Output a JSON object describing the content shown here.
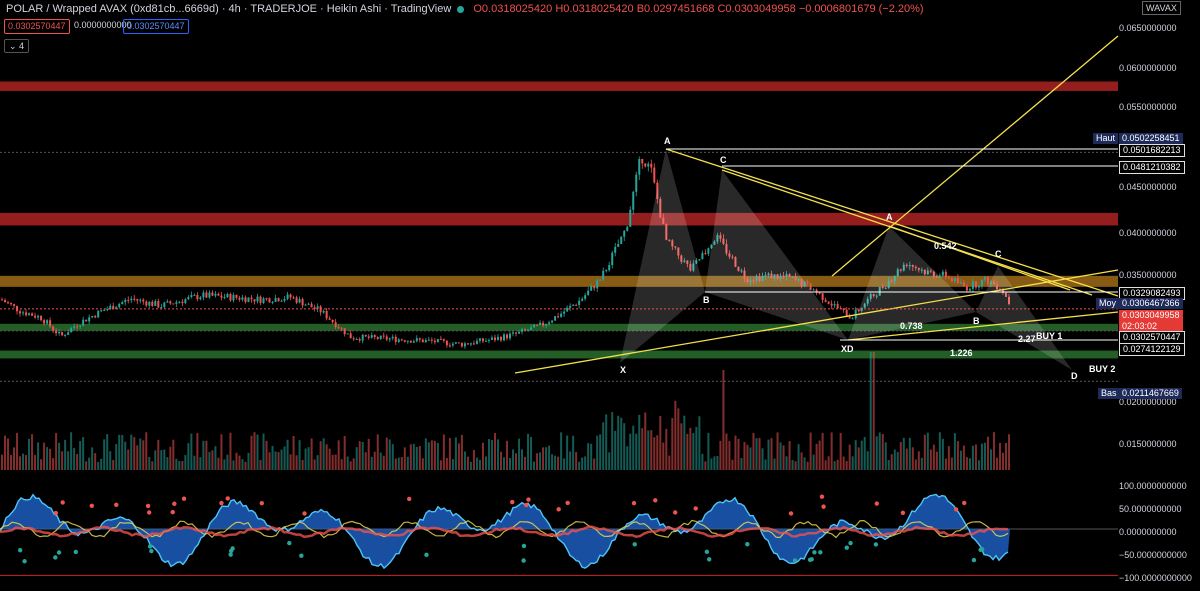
{
  "header": {
    "title": "POLAR / Wrapped AVAX (0xd81cb...6669d) · 4h · TRADERJOE · Heikin Ashi · TradingView",
    "open": "O0.0318025420",
    "high": "H0.0318025420",
    "low": "B0.0297451668",
    "close": "C0.0303049958",
    "change": "−0.0006801679 (−2.20%)"
  },
  "trade": {
    "sell": "0.0302570447",
    "spread": "0.0000000000",
    "buy": "0.0302570447"
  },
  "collapse_label": "⌄ 4",
  "symbol_badge": "WAVAX",
  "colors": {
    "up": "#26a69a",
    "down": "#ef5350",
    "pattern": "#f4e04d",
    "resistance": "#c62828",
    "orange": "#f5a623",
    "support": "#2e7d32"
  },
  "chart_data": [
    {
      "type": "candlestick",
      "style": "Heikin Ashi",
      "interval": "4h",
      "y_ticks": [
        "0.0650000000",
        "0.0600000000",
        "0.0550000000",
        "0.0500000000",
        "0.0450000000",
        "0.0400000000",
        "0.0350000000",
        "0.0300000000",
        "0.0250000000",
        "0.0200000000",
        "0.0150000000"
      ],
      "ylim": [
        0.013,
        0.066
      ],
      "zones": [
        {
          "low": 0.058,
          "high": 0.0592,
          "color": "resistance"
        },
        {
          "low": 0.0409,
          "high": 0.0425,
          "color": "resistance"
        },
        {
          "low": 0.0331,
          "high": 0.0345,
          "color": "orange"
        },
        {
          "low": 0.0275,
          "high": 0.0284,
          "color": "support",
          "label": "BUY 1"
        },
        {
          "low": 0.024,
          "high": 0.025,
          "color": "support",
          "label": "BUY 2"
        }
      ],
      "price_labels": [
        {
          "label": "Haut",
          "value": "0.0502258451"
        },
        {
          "value": "0.0501682213"
        },
        {
          "value": "0.0481210382"
        },
        {
          "value": "0.0329082493"
        },
        {
          "label": "Moy",
          "value": "0.0306467366"
        },
        {
          "value": "0.0303049958",
          "countdown": "02:03:02"
        },
        {
          "value": "0.0302570447"
        },
        {
          "value": "0.0274122129"
        },
        {
          "label": "Bas",
          "value": "0.0211467669"
        }
      ],
      "pattern_points": [
        "X",
        "A",
        "B",
        "C",
        "D"
      ],
      "pattern_points_2": [
        "XD",
        "A",
        "B",
        "C",
        "D"
      ],
      "ratios": [
        "0.542",
        "0.738",
        "2.27",
        "1.226"
      ]
    },
    {
      "type": "line",
      "title": "oscillator",
      "y_ticks": [
        "100.0000000000",
        "50.0000000000",
        "0.0000000000",
        "−50.0000000000",
        "−100.0000000000"
      ],
      "ylim": [
        -110,
        110
      ]
    }
  ]
}
